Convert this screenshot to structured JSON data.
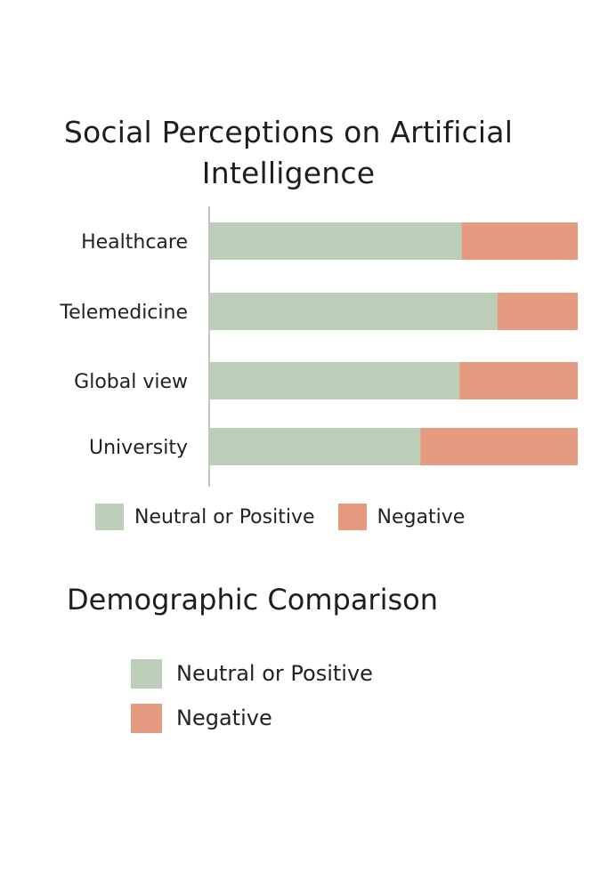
{
  "colors": {
    "positive": "#bccdb8",
    "negative": "#e59b7f",
    "axis": "#888888"
  },
  "chart_data": {
    "type": "bar",
    "orientation": "horizontal",
    "stacked": true,
    "title": "Social Perceptions on Artificial Intelligence",
    "categories": [
      "Healthcare",
      "Telemedicine",
      "Global view",
      "University"
    ],
    "series": [
      {
        "name": "Neutral or Positive",
        "values": [
          68.5,
          78.2,
          67.9,
          57.3
        ]
      },
      {
        "name": "Negative",
        "values": [
          31.5,
          21.8,
          32.1,
          42.7
        ]
      }
    ],
    "xlim": [
      0,
      100
    ],
    "grid": false,
    "legend": "bottom"
  },
  "legend": {
    "positive_label": "Neutral or Positive",
    "negative_label": "Negative"
  },
  "section2": {
    "title": "Demographic Comparison",
    "legend_positive": "Neutral or Positive",
    "legend_negative": "Negative"
  }
}
